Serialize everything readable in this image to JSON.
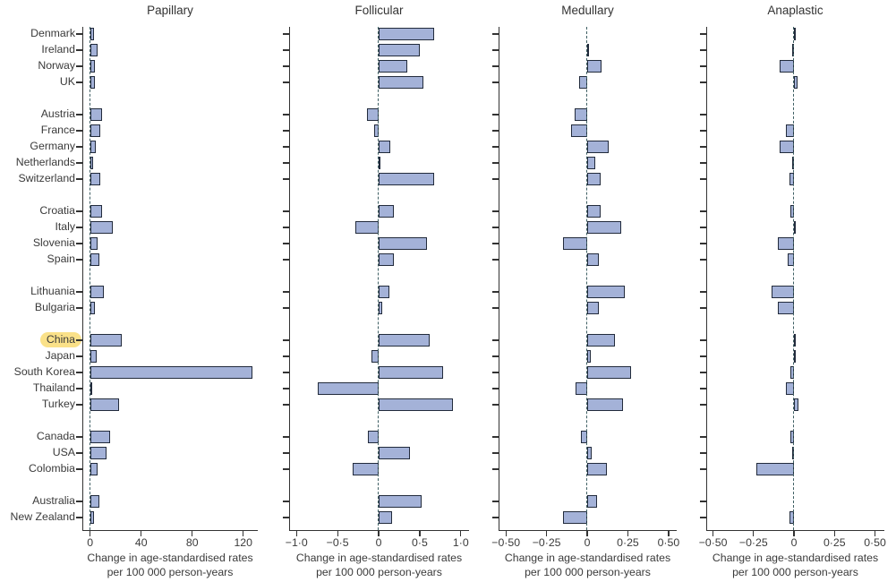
{
  "figure": {
    "highlighted_country": "China",
    "country_groups": [
      [
        "Denmark",
        "Ireland",
        "Norway",
        "UK"
      ],
      [
        "Austria",
        "France",
        "Germany",
        "Netherlands",
        "Switzerland"
      ],
      [
        "Croatia",
        "Italy",
        "Slovenia",
        "Spain"
      ],
      [
        "Lithuania",
        "Bulgaria"
      ],
      [
        "China",
        "Japan",
        "South Korea",
        "Thailand",
        "Turkey"
      ],
      [
        "Canada",
        "USA",
        "Colombia"
      ],
      [
        "Australia",
        "New Zealand"
      ]
    ],
    "x_axis_caption": [
      "Change in age-standardised rates",
      "per 100 000 person-years"
    ],
    "colors": {
      "bar_fill": "#a4b2d8",
      "bar_border": "#222b3c",
      "zero_line": "#3e5f63",
      "axis": "#333333",
      "text": "#3a3a3a",
      "highlight": "#fae189"
    }
  },
  "chart_data": [
    {
      "type": "bar",
      "orientation": "horizontal",
      "title": "Papillary",
      "xlabel": "Change in age-standardised rates per 100 000 person-years",
      "xlim": [
        -6.1,
        131.4
      ],
      "xticks": [
        0,
        40,
        80,
        120
      ],
      "xtick_labels": [
        "0",
        "40",
        "80",
        "120"
      ],
      "categories": [
        "Denmark",
        "Ireland",
        "Norway",
        "UK",
        "Austria",
        "France",
        "Germany",
        "Netherlands",
        "Switzerland",
        "Croatia",
        "Italy",
        "Slovenia",
        "Spain",
        "Lithuania",
        "Bulgaria",
        "China",
        "Japan",
        "South Korea",
        "Thailand",
        "Turkey",
        "Canada",
        "USA",
        "Colombia",
        "Australia",
        "New Zealand"
      ],
      "values": [
        3,
        6,
        4,
        4,
        9,
        8,
        4.5,
        2,
        8,
        9,
        18,
        6,
        7,
        11,
        4,
        25,
        5,
        127,
        1,
        23,
        16,
        13,
        6,
        7.5,
        3
      ]
    },
    {
      "type": "bar",
      "orientation": "horizontal",
      "title": "Follicular",
      "xlabel": "Change in age-standardised rates per 100 000 person-years",
      "xlim": [
        -1.09,
        1.1
      ],
      "xticks": [
        -1.0,
        -0.5,
        0,
        0.5,
        1.0
      ],
      "xtick_labels": [
        "−1·0",
        "−0·5",
        "0",
        "0·5",
        "1·0"
      ],
      "categories": [
        "Denmark",
        "Ireland",
        "Norway",
        "UK",
        "Austria",
        "France",
        "Germany",
        "Netherlands",
        "Switzerland",
        "Croatia",
        "Italy",
        "Slovenia",
        "Spain",
        "Lithuania",
        "Bulgaria",
        "China",
        "Japan",
        "South Korea",
        "Thailand",
        "Turkey",
        "Canada",
        "USA",
        "Colombia",
        "Australia",
        "New Zealand"
      ],
      "values": [
        0.68,
        0.5,
        0.35,
        0.54,
        -0.14,
        -0.05,
        0.14,
        0.02,
        0.67,
        0.19,
        -0.28,
        0.59,
        0.18,
        0.13,
        0.04,
        0.62,
        -0.09,
        0.78,
        -0.74,
        0.9,
        -0.13,
        0.38,
        -0.32,
        0.52,
        0.16
      ]
    },
    {
      "type": "bar",
      "orientation": "horizontal",
      "title": "Medullary",
      "xlabel": "Change in age-standardised rates per 100 000 person-years",
      "xlim": [
        -0.545,
        0.55
      ],
      "xticks": [
        -0.5,
        -0.25,
        0,
        0.25,
        0.5
      ],
      "xtick_labels": [
        "−0·50",
        "−0·25",
        "0",
        "0·25",
        "0·50"
      ],
      "categories": [
        "Denmark",
        "Ireland",
        "Norway",
        "UK",
        "Austria",
        "France",
        "Germany",
        "Netherlands",
        "Switzerland",
        "Croatia",
        "Italy",
        "Slovenia",
        "Spain",
        "Lithuania",
        "Bulgaria",
        "China",
        "Japan",
        "South Korea",
        "Thailand",
        "Turkey",
        "Canada",
        "USA",
        "Colombia",
        "Australia",
        "New Zealand"
      ],
      "values": [
        0,
        0.01,
        0.09,
        -0.05,
        -0.08,
        -0.1,
        0.13,
        0.05,
        0.08,
        0.08,
        0.21,
        -0.15,
        0.07,
        0.23,
        0.07,
        0.17,
        0.02,
        0.27,
        -0.07,
        0.22,
        -0.04,
        0.03,
        0.12,
        0.06,
        -0.15
      ]
    },
    {
      "type": "bar",
      "orientation": "horizontal",
      "title": "Anaplastic",
      "xlabel": "Change in age-standardised rates per 100 000 person-years",
      "xlim": [
        -0.542,
        0.558
      ],
      "xticks": [
        -0.5,
        -0.25,
        0,
        0.25,
        0.5
      ],
      "xtick_labels": [
        "−0·50",
        "−0·25",
        "0",
        "0·25",
        "0·50"
      ],
      "categories": [
        "Denmark",
        "Ireland",
        "Norway",
        "UK",
        "Austria",
        "France",
        "Germany",
        "Netherlands",
        "Switzerland",
        "Croatia",
        "Italy",
        "Slovenia",
        "Spain",
        "Lithuania",
        "Bulgaria",
        "China",
        "Japan",
        "South Korea",
        "Thailand",
        "Turkey",
        "Canada",
        "USA",
        "Colombia",
        "Australia",
        "New Zealand"
      ],
      "values": [
        0.01,
        -0.01,
        -0.09,
        0.02,
        0,
        -0.05,
        -0.09,
        -0.01,
        -0.03,
        -0.02,
        0.01,
        -0.1,
        -0.04,
        -0.14,
        -0.1,
        0.01,
        0.01,
        -0.02,
        -0.05,
        0.03,
        -0.02,
        -0.01,
        -0.23,
        0,
        -0.03
      ]
    }
  ]
}
